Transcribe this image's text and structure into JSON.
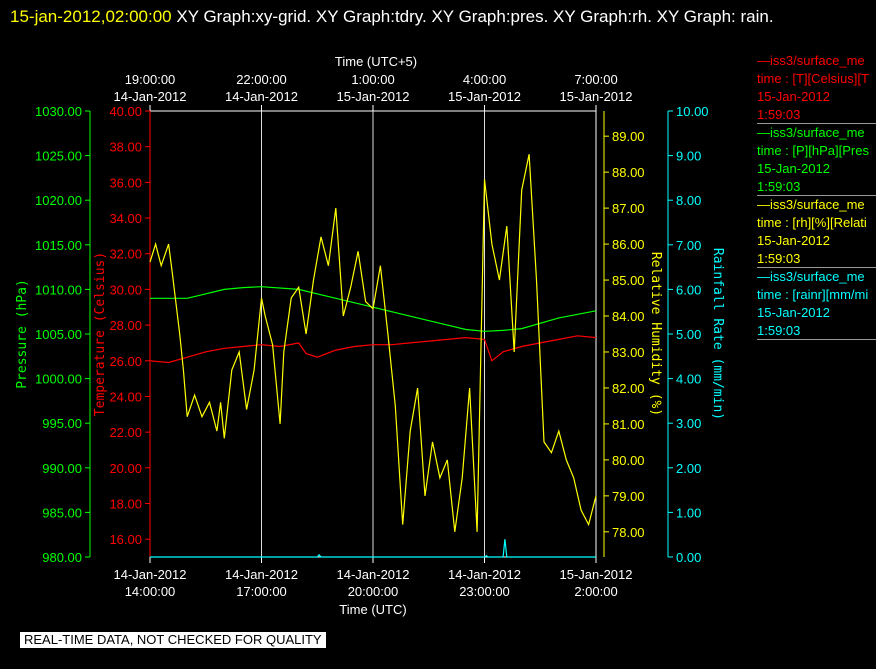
{
  "title": {
    "timestamp": "15-jan-2012,02:00:00",
    "rest": " XY Graph:xy-grid.  XY Graph:tdry.  XY Graph:pres.  XY Graph:rh.  XY Graph: rain."
  },
  "quality_note": "REAL-TIME DATA, NOT CHECKED FOR QUALITY",
  "legend": [
    {
      "line": "—iss3/surface_me",
      "desc": "time : [T][Celsius][T",
      "date": "15-Jan-2012",
      "time": "1:59:03",
      "color": "#ff0000"
    },
    {
      "line": "—iss3/surface_me",
      "desc": "time : [P][hPa][Pres",
      "date": "15-Jan-2012",
      "time": "1:59:03",
      "color": "#00ff00"
    },
    {
      "line": "—iss3/surface_me",
      "desc": "time : [rh][%][Relati",
      "date": "15-Jan-2012",
      "time": "1:59:03",
      "color": "#ffff00"
    },
    {
      "line": "—iss3/surface_me",
      "desc": "time : [rainr][mm/mi",
      "date": "15-Jan-2012",
      "time": "1:59:03",
      "color": "#00ffff"
    }
  ],
  "chart_data": {
    "type": "line",
    "top_axis": {
      "label": "Time (UTC+5)",
      "ticks": [
        {
          "t": "19:00:00",
          "d": "14-Jan-2012",
          "h": 5
        },
        {
          "t": "22:00:00",
          "d": "14-Jan-2012",
          "h": 8
        },
        {
          "t": "1:00:00",
          "d": "15-Jan-2012",
          "h": 11
        },
        {
          "t": "4:00:00",
          "d": "15-Jan-2012",
          "h": 14
        },
        {
          "t": "7:00:00",
          "d": "15-Jan-2012",
          "h": 17
        }
      ]
    },
    "x_axis": {
      "label": "Time (UTC)",
      "range_hours": [
        0,
        12
      ],
      "ticks": [
        {
          "d": "14-Jan-2012",
          "t": "14:00:00",
          "h": 0
        },
        {
          "d": "14-Jan-2012",
          "t": "17:00:00",
          "h": 3
        },
        {
          "d": "14-Jan-2012",
          "t": "20:00:00",
          "h": 6
        },
        {
          "d": "14-Jan-2012",
          "t": "23:00:00",
          "h": 9
        },
        {
          "d": "15-Jan-2012",
          "t": "2:00:00",
          "h": 12
        }
      ]
    },
    "grid": "vertical lines at x ticks",
    "y_axes": [
      {
        "id": "pres",
        "label": "Pressure (hPa)",
        "color": "#00ff00",
        "min": 980,
        "max": 1030,
        "ticks": [
          "980.00",
          "985.00",
          "990.00",
          "995.00",
          "1000.00",
          "1005.00",
          "1010.00",
          "1015.00",
          "1020.00",
          "1025.00",
          "1030.00"
        ]
      },
      {
        "id": "temp",
        "label": "Temperature (Celsius)",
        "color": "#ff0000",
        "min": 15,
        "max": 40,
        "ticks": [
          "16.00",
          "18.00",
          "20.00",
          "22.00",
          "24.00",
          "26.00",
          "28.00",
          "30.00",
          "32.00",
          "34.00",
          "36.00",
          "38.00",
          "40.00"
        ]
      },
      {
        "id": "rh",
        "label": "Relative Humidity (%)",
        "color": "#ffff00",
        "min": 77.3,
        "max": 89.7,
        "ticks": [
          "78.00",
          "79.00",
          "80.00",
          "81.00",
          "82.00",
          "83.00",
          "84.00",
          "85.00",
          "86.00",
          "87.00",
          "88.00",
          "89.00"
        ]
      },
      {
        "id": "rain",
        "label": "Rainfall Rate (mm/min)",
        "color": "#00ffff",
        "min": 0,
        "max": 10,
        "ticks": [
          "0.00",
          "1.00",
          "2.00",
          "3.00",
          "4.00",
          "5.00",
          "6.00",
          "7.00",
          "8.00",
          "9.00",
          "10.00"
        ]
      }
    ],
    "series": [
      {
        "axis": "pres",
        "color": "#00ff00",
        "x": [
          0,
          1,
          2,
          2.5,
          3,
          4,
          5,
          6,
          7,
          8,
          8.5,
          9,
          9.5,
          10,
          11,
          12
        ],
        "y": [
          1009,
          1009,
          1010,
          1010.2,
          1010.3,
          1010,
          1009,
          1008,
          1007,
          1006,
          1005.5,
          1005.3,
          1005.4,
          1005.6,
          1006.8,
          1007.6
        ]
      },
      {
        "axis": "temp",
        "color": "#ff0000",
        "x": [
          0,
          0.5,
          1,
          1.5,
          2,
          2.5,
          3,
          3.5,
          4,
          4.2,
          4.5,
          5,
          5.5,
          6,
          6.5,
          7,
          7.5,
          8,
          8.5,
          9,
          9.2,
          9.5,
          10,
          10.5,
          11,
          11.5,
          12
        ],
        "y": [
          26.0,
          25.9,
          26.2,
          26.5,
          26.7,
          26.8,
          26.9,
          26.8,
          27.0,
          26.4,
          26.2,
          26.6,
          26.8,
          26.9,
          26.9,
          27.0,
          27.1,
          27.2,
          27.3,
          27.2,
          26.0,
          26.5,
          26.8,
          27.0,
          27.2,
          27.4,
          27.3
        ]
      },
      {
        "axis": "rh",
        "color": "#ffff00",
        "x": [
          0,
          0.15,
          0.3,
          0.5,
          0.6,
          0.8,
          0.9,
          1.0,
          1.2,
          1.4,
          1.6,
          1.8,
          1.9,
          2.0,
          2.2,
          2.4,
          2.6,
          2.8,
          3.0,
          3.1,
          3.3,
          3.5,
          3.6,
          3.8,
          4.0,
          4.2,
          4.4,
          4.6,
          4.8,
          5.0,
          5.2,
          5.4,
          5.6,
          5.8,
          6.0,
          6.2,
          6.4,
          6.6,
          6.8,
          7.0,
          7.2,
          7.4,
          7.6,
          7.8,
          8.0,
          8.2,
          8.4,
          8.6,
          8.8,
          9.0,
          9.2,
          9.4,
          9.6,
          9.8,
          10.0,
          10.2,
          10.4,
          10.6,
          10.8,
          11.0,
          11.2,
          11.4,
          11.6,
          11.8,
          12.0
        ],
        "y": [
          85.5,
          86.0,
          85.4,
          86.0,
          85.2,
          83.5,
          82.5,
          81.2,
          81.8,
          81.2,
          81.6,
          80.8,
          81.6,
          80.6,
          82.5,
          83.0,
          81.4,
          82.5,
          84.5,
          84.0,
          83.2,
          81.0,
          83.0,
          84.5,
          84.8,
          83.5,
          85.0,
          86.2,
          85.4,
          87.0,
          84.0,
          84.8,
          85.8,
          84.4,
          84.2,
          85.4,
          83.5,
          81.5,
          78.2,
          80.8,
          82.0,
          79.0,
          80.5,
          79.5,
          80.0,
          78.0,
          79.5,
          82.0,
          78.0,
          87.8,
          86.0,
          85.0,
          86.5,
          83.0,
          87.5,
          88.5,
          85.0,
          80.5,
          80.2,
          80.8,
          80.0,
          79.5,
          78.6,
          78.2,
          79.0
        ]
      },
      {
        "axis": "rain",
        "color": "#00ffff",
        "x": [
          0,
          4.5,
          4.55,
          4.6,
          9.0,
          9.05,
          9.1,
          9.5,
          9.55,
          9.6,
          12
        ],
        "y": [
          0,
          0,
          0.05,
          0,
          0,
          0.03,
          0,
          0,
          0.4,
          0,
          0
        ]
      }
    ]
  }
}
